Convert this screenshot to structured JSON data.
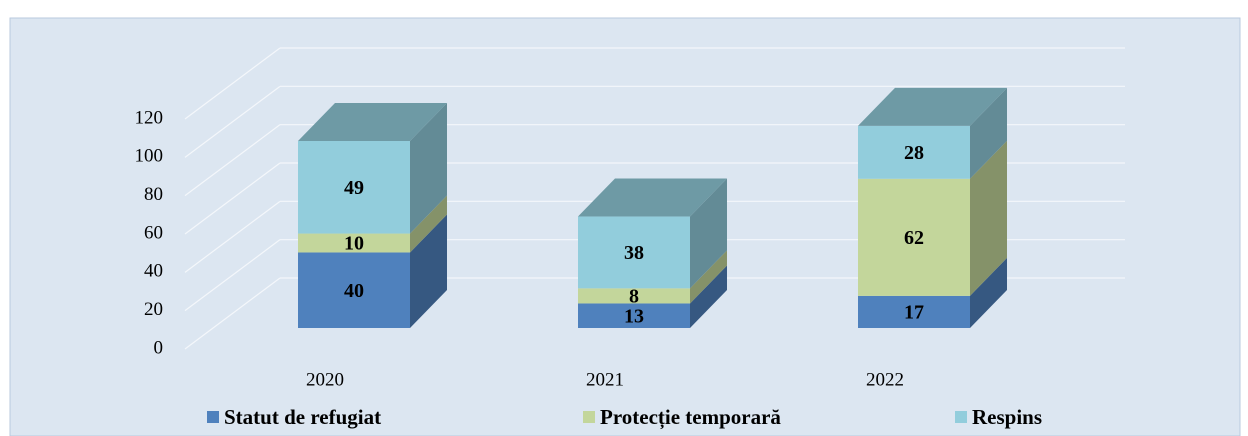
{
  "chart_data": {
    "type": "bar3d_stacked",
    "categories": [
      "2020",
      "2021",
      "2022"
    ],
    "series": [
      {
        "name": "Statut de refugiat",
        "color": "#4f81bd",
        "values": [
          40,
          13,
          17
        ]
      },
      {
        "name": "Protecție temporară",
        "color": "#c3d69b",
        "values": [
          10,
          8,
          62
        ]
      },
      {
        "name": "Respins",
        "color": "#92cddc",
        "values": [
          49,
          38,
          28
        ]
      }
    ],
    "ylim": [
      0,
      120
    ],
    "yticks": [
      0,
      20,
      40,
      60,
      80,
      100,
      120
    ],
    "grid": true,
    "legend": "bottom"
  }
}
